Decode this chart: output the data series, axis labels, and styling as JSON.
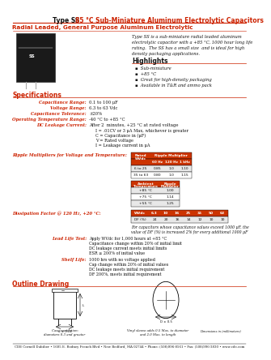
{
  "title_black": "Type SS",
  "title_red": "  85 °C Sub-Miniature Aluminum Electrolytic Capacitors",
  "subtitle": "Radial Leaded, General Purpose Aluminum Electrolytic",
  "description_lines": [
    "Type SS is a sub-miniature radial leaded aluminum",
    "electrolytic capacitor with a +85 °C, 1000 hour long life",
    "rating.  The SS has a small size  and is ideal for high",
    "density packaging applications."
  ],
  "highlights_title": "Highlights",
  "highlights": [
    "Sub-miniature",
    "+85 °C",
    "Great for high-density packaging",
    "Available in T&R and ammo pack"
  ],
  "spec_title": "Specifications",
  "spec_labels": [
    "Capacitance Range:",
    "Voltage Range:",
    "Capacitance Tolerance:",
    "Operating Temperature Range:",
    "DC Leakage Current:"
  ],
  "spec_values": [
    "0.1 to 100 μF",
    "6.3 to 63 Vdc",
    "±20%",
    "-40 °C to +85 °C",
    "After 2  minutes, +25 °C at rated voltage"
  ],
  "dcl_extra": [
    "I = .01CV or 3 μA Max, whichever is greater",
    "C = Capacitance in (μF)",
    "V = Rated voltage",
    "I = Leakage current in μA"
  ],
  "ripple_title": "Ripple Multipliers for Voltage and Temperature:",
  "ripple_table1_header": [
    "Rated\nWVdc",
    "60 Hz",
    "120 Hz",
    "1 kHz"
  ],
  "ripple_table1_rows": [
    [
      "6 to 25",
      "0.85",
      "1.0",
      "1.10"
    ],
    [
      "35 to 63",
      "0.80",
      "1.0",
      "1.15"
    ]
  ],
  "ripple_table2_header": [
    "Ambient\nTemperature",
    "Ripple\nMultiplier"
  ],
  "ripple_table2_rows": [
    [
      "+85 °C",
      "1.00"
    ],
    [
      "+75 °C",
      "1.14"
    ],
    [
      "+55 °C",
      "1.25"
    ]
  ],
  "df_title": "Dissipation Factor @ 120 Hz, +20 °C:",
  "df_header": [
    "WVdc",
    "6.3",
    "10",
    "16",
    "25",
    "35",
    "50",
    "63"
  ],
  "df_row": [
    "DF (%)",
    "24",
    "20",
    "16",
    "14",
    "12",
    "10",
    "10"
  ],
  "df_note_lines": [
    "For capacitors whose capacitance values exceed 1000 μF, the",
    "value of DF (%) is increased 2% for every additional 1000 μF"
  ],
  "lead_life_title": "Lead Life Test:",
  "lead_life_lines": [
    "Apply WVdc for 1,000 hours at +85 °C",
    "Capacitance change within 20% of initial limit",
    "DC leakage current meets initial limits",
    "ESR ≤ 200% of initial value"
  ],
  "shelf_life_title": "Shelf Life:",
  "shelf_life_lines": [
    "1000 hrs with no voltage applied",
    "Cap change within 20% of initial values",
    "DC leakage meets initial requirement",
    "DF 200%, meets initial requirement"
  ],
  "outline_title": "Outline Drawing",
  "footer": "CDE Cornell Dubilier • 1605 E. Rodney French Blvd • New Bedford, MA 02744 • Phone: (508)996-8561 • Fax: (508)996-3830 • www.cde.com",
  "RED": "#CC2200",
  "DARK": "#111111",
  "TABLE_HDR": "#CC3300",
  "TABLE_ROW0": "#e8e8e8",
  "TABLE_ROW1": "#ffffff"
}
